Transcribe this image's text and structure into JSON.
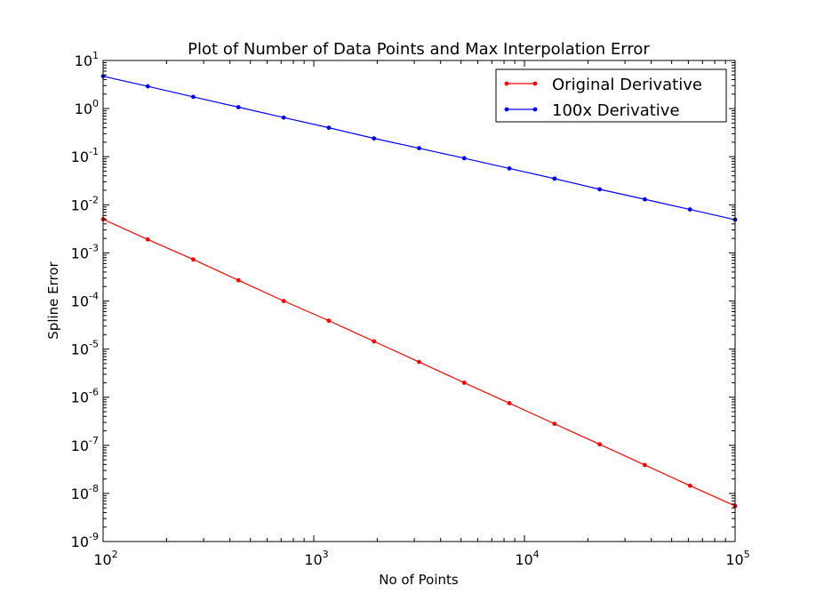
{
  "chart_data": {
    "type": "line",
    "title": "Plot of Number of Data Points and Max Interpolation Error",
    "xlabel": "No of Points",
    "ylabel": "Spline Error",
    "xscale": "log",
    "yscale": "log",
    "xlim": [
      100,
      100000
    ],
    "ylim": [
      1e-09,
      10
    ],
    "grid": false,
    "legend_position": "top-right",
    "x_ticks": [
      {
        "base": "10",
        "exp": "2",
        "value": 100
      },
      {
        "base": "10",
        "exp": "3",
        "value": 1000
      },
      {
        "base": "10",
        "exp": "4",
        "value": 10000
      },
      {
        "base": "10",
        "exp": "5",
        "value": 100000
      }
    ],
    "y_ticks": [
      {
        "base": "10",
        "exp": "1",
        "value": 10
      },
      {
        "base": "10",
        "exp": "0",
        "value": 1
      },
      {
        "base": "10",
        "exp": "-1",
        "value": 0.1
      },
      {
        "base": "10",
        "exp": "-2",
        "value": 0.01
      },
      {
        "base": "10",
        "exp": "-3",
        "value": 0.001
      },
      {
        "base": "10",
        "exp": "-4",
        "value": 0.0001
      },
      {
        "base": "10",
        "exp": "-5",
        "value": 1e-05
      },
      {
        "base": "10",
        "exp": "-6",
        "value": 1e-06
      },
      {
        "base": "10",
        "exp": "-7",
        "value": 1e-07
      },
      {
        "base": "10",
        "exp": "-8",
        "value": 1e-08
      },
      {
        "base": "10",
        "exp": "-9",
        "value": 1e-09
      }
    ],
    "x": [
      100,
      163,
      268,
      439,
      720,
      1179,
      1931,
      3162,
      5179,
      8483,
      13895,
      22758,
      37276,
      61054,
      100000
    ],
    "series": [
      {
        "name": "Original Derivative",
        "color": "#ff0000",
        "values": [
          0.005,
          0.0019,
          0.00073,
          0.00027,
          0.0001,
          3.9e-05,
          1.45e-05,
          5.4e-06,
          2e-06,
          7.5e-07,
          2.8e-07,
          1.05e-07,
          3.9e-08,
          1.45e-08,
          5.5e-09
        ]
      },
      {
        "name": "100x Derivative",
        "color": "#0000ff",
        "values": [
          4.7,
          2.9,
          1.75,
          1.07,
          0.65,
          0.4,
          0.24,
          0.15,
          0.093,
          0.057,
          0.035,
          0.021,
          0.013,
          0.008,
          0.0049
        ]
      }
    ]
  }
}
